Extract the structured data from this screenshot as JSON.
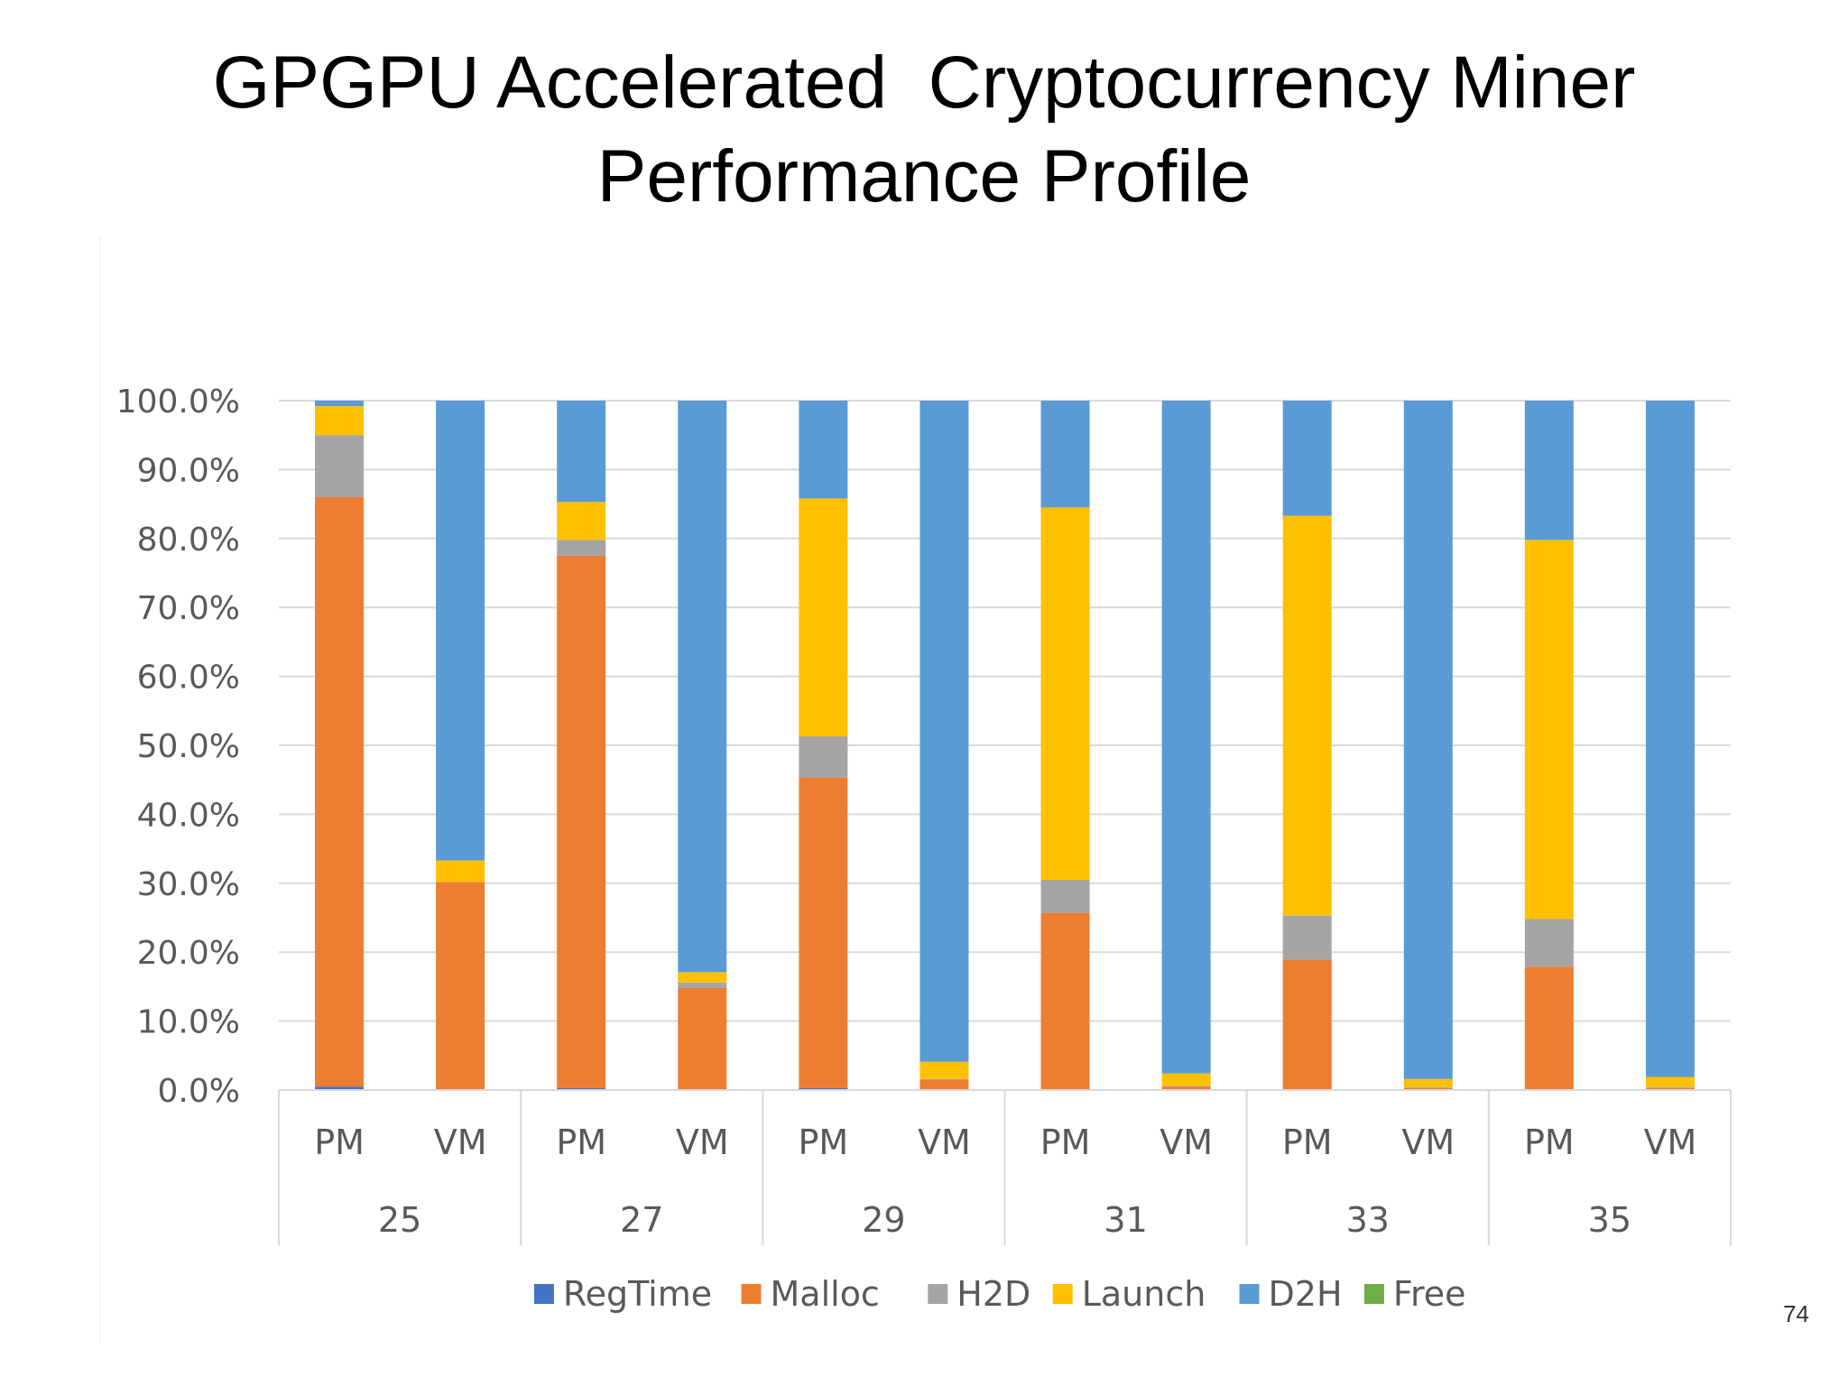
{
  "slide": {
    "title_line1": "GPGPU Accelerated  Cryptocurrency Miner",
    "title_line2": "Performance Profile",
    "page_number": "74"
  },
  "chart_data": {
    "type": "bar",
    "stacked": true,
    "title": "",
    "xlabel": "",
    "ylabel": "",
    "ylim": [
      0,
      100
    ],
    "y_ticks": [
      "0.0%",
      "10.0%",
      "20.0%",
      "30.0%",
      "40.0%",
      "50.0%",
      "60.0%",
      "70.0%",
      "80.0%",
      "90.0%",
      "100.0%"
    ],
    "groups": [
      "25",
      "27",
      "29",
      "31",
      "33",
      "35"
    ],
    "categories": [
      "PM",
      "VM",
      "PM",
      "VM",
      "PM",
      "VM",
      "PM",
      "VM",
      "PM",
      "VM",
      "PM",
      "VM"
    ],
    "grid": true,
    "legend_position": "bottom",
    "series": [
      {
        "name": "RegTime",
        "color": "#4472c4",
        "values": [
          0.5,
          0,
          0.3,
          0,
          0.3,
          0,
          0,
          0,
          0,
          0,
          0,
          0
        ]
      },
      {
        "name": "Malloc",
        "color": "#ed7d31",
        "values": [
          85.5,
          30.2,
          77.2,
          14.8,
          45.0,
          1.5,
          25.7,
          0.5,
          18.9,
          0.3,
          17.9,
          0.3
        ]
      },
      {
        "name": "H2D",
        "color": "#a5a5a5",
        "values": [
          9.0,
          0,
          2.3,
          0.8,
          6.0,
          0.1,
          4.8,
          0.1,
          6.4,
          0.1,
          6.9,
          0.1
        ]
      },
      {
        "name": "Launch",
        "color": "#ffc000",
        "values": [
          4.2,
          3.1,
          5.5,
          1.5,
          34.5,
          2.5,
          54.0,
          1.8,
          58.0,
          1.2,
          55.0,
          1.5
        ]
      },
      {
        "name": "D2H",
        "color": "#5b9bd5",
        "values": [
          0.8,
          66.7,
          14.7,
          82.9,
          14.2,
          95.9,
          15.5,
          97.6,
          16.7,
          98.4,
          20.2,
          98.1
        ]
      },
      {
        "name": "Free",
        "color": "#70ad47",
        "values": [
          0,
          0,
          0,
          0,
          0,
          0,
          0,
          0,
          0,
          0,
          0,
          0
        ]
      }
    ]
  }
}
